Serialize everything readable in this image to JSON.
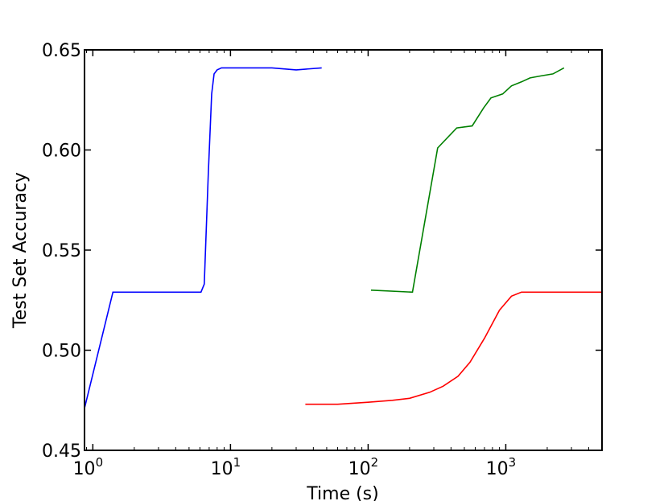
{
  "chart_data": {
    "type": "line",
    "title": "",
    "xlabel": "Time (s)",
    "ylabel": "Test Set Accuracy",
    "xscale": "log",
    "xlim": [
      0.87,
      5000
    ],
    "ylim": [
      0.45,
      0.65
    ],
    "grid": false,
    "legend": "none",
    "x_ticks": [
      {
        "value": 1,
        "base": "10",
        "exp": "0"
      },
      {
        "value": 10,
        "base": "10",
        "exp": "1"
      },
      {
        "value": 100,
        "base": "10",
        "exp": "2"
      },
      {
        "value": 1000,
        "base": "10",
        "exp": "3"
      }
    ],
    "y_ticks": [
      {
        "value": 0.45,
        "label": "0.45"
      },
      {
        "value": 0.5,
        "label": "0.50"
      },
      {
        "value": 0.55,
        "label": "0.55"
      },
      {
        "value": 0.6,
        "label": "0.60"
      },
      {
        "value": 0.65,
        "label": "0.65"
      }
    ],
    "series": [
      {
        "color": "#0000ff",
        "x": [
          0.87,
          1.4,
          6.1,
          6.45,
          6.9,
          7.3,
          7.6,
          8.0,
          8.6,
          10,
          15,
          20,
          30,
          46
        ],
        "y": [
          0.471,
          0.529,
          0.529,
          0.533,
          0.588,
          0.628,
          0.638,
          0.64,
          0.641,
          0.641,
          0.641,
          0.641,
          0.64,
          0.641
        ]
      },
      {
        "color": "#008000",
        "x": [
          105,
          210,
          320,
          440,
          570,
          690,
          780,
          950,
          1100,
          1300,
          1500,
          1800,
          2200,
          2650
        ],
        "y": [
          0.53,
          0.529,
          0.601,
          0.611,
          0.612,
          0.621,
          0.626,
          0.628,
          0.632,
          0.634,
          0.636,
          0.637,
          0.638,
          0.641
        ]
      },
      {
        "color": "#ff0000",
        "x": [
          35,
          60,
          100,
          150,
          200,
          280,
          350,
          450,
          550,
          700,
          900,
          1100,
          1300,
          1600,
          2500,
          5000
        ],
        "y": [
          0.473,
          0.473,
          0.474,
          0.475,
          0.476,
          0.479,
          0.482,
          0.487,
          0.494,
          0.506,
          0.52,
          0.527,
          0.529,
          0.529,
          0.529,
          0.529
        ]
      }
    ]
  }
}
